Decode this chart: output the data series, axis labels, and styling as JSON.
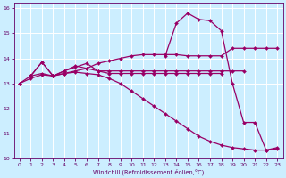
{
  "xlabel": "Windchill (Refroidissement éolien,°C)",
  "bg_color": "#cceeff",
  "grid_color": "#ffffff",
  "line_color": "#990066",
  "xlim": [
    -0.5,
    23.5
  ],
  "ylim": [
    10,
    16.2
  ],
  "yticks": [
    10,
    11,
    12,
    13,
    14,
    15,
    16
  ],
  "xticks": [
    0,
    1,
    2,
    3,
    4,
    5,
    6,
    7,
    8,
    9,
    10,
    11,
    12,
    13,
    14,
    15,
    16,
    17,
    18,
    19,
    20,
    21,
    22,
    23
  ],
  "curves": [
    {
      "x": [
        0,
        1,
        2,
        3,
        4,
        5,
        6,
        7,
        8,
        9,
        10,
        11,
        12,
        13,
        14,
        15,
        16,
        17,
        18,
        19,
        20,
        21,
        22,
        23
      ],
      "y": [
        13.0,
        13.3,
        13.4,
        13.3,
        13.4,
        13.5,
        13.6,
        13.8,
        13.9,
        14.0,
        14.1,
        14.15,
        14.15,
        14.15,
        14.15,
        14.1,
        14.1,
        14.1,
        14.1,
        14.4,
        14.4,
        14.4,
        14.4,
        14.4
      ]
    },
    {
      "x": [
        1,
        2,
        3,
        4,
        5,
        6,
        7,
        8,
        9,
        10,
        11,
        12,
        13,
        14,
        15,
        16,
        17,
        18
      ],
      "y": [
        13.3,
        13.85,
        13.3,
        13.5,
        13.65,
        13.8,
        13.5,
        13.4,
        13.4,
        13.4,
        13.4,
        13.4,
        13.4,
        13.4,
        13.4,
        13.4,
        13.4,
        13.4
      ]
    },
    {
      "x": [
        1,
        2,
        3,
        4,
        5,
        6,
        7,
        8,
        9,
        10,
        11,
        12,
        13,
        14,
        15,
        16,
        17,
        18,
        19,
        20
      ],
      "y": [
        13.3,
        13.85,
        13.3,
        13.5,
        13.7,
        13.6,
        13.5,
        13.5,
        13.5,
        13.5,
        13.5,
        13.5,
        13.5,
        13.5,
        13.5,
        13.5,
        13.5,
        13.5,
        13.5,
        13.5
      ]
    },
    {
      "x": [
        0,
        1,
        2,
        3,
        4,
        5,
        6,
        7,
        8,
        9,
        10,
        11,
        12,
        13,
        14,
        15,
        16,
        17,
        18,
        19,
        20,
        21,
        22,
        23
      ],
      "y": [
        13.0,
        13.2,
        13.35,
        13.3,
        13.4,
        13.45,
        13.4,
        13.35,
        13.2,
        13.0,
        12.7,
        12.4,
        12.1,
        11.8,
        11.5,
        11.2,
        10.9,
        10.7,
        10.55,
        10.45,
        10.4,
        10.35,
        10.35,
        10.4
      ]
    },
    {
      "x": [
        13,
        14,
        15,
        16,
        17,
        18,
        19,
        20,
        21,
        22,
        23
      ],
      "y": [
        14.1,
        15.4,
        15.8,
        15.55,
        15.5,
        15.1,
        13.0,
        11.45,
        11.45,
        10.35,
        10.45
      ]
    }
  ]
}
